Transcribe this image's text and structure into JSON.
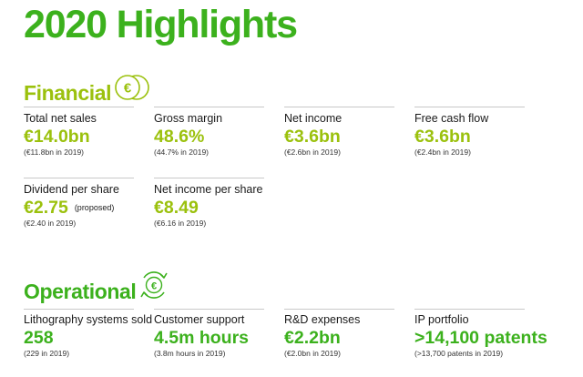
{
  "title": "2020 Highlights",
  "colors": {
    "financial": "#9bc10d",
    "operational": "#3cb11d",
    "title": "#3cb11d",
    "divider": "#c8c8c8"
  },
  "financial": {
    "heading": "Financial",
    "icon": "euro-coins-icon",
    "metrics": [
      {
        "label": "Total net sales",
        "value": "€14.0bn",
        "previous": "(€11.8bn in 2019)"
      },
      {
        "label": "Gross margin",
        "value": "48.6%",
        "previous": "(44.7% in 2019)"
      },
      {
        "label": "Net income",
        "value": "€3.6bn",
        "previous": "(€2.6bn in 2019)"
      },
      {
        "label": "Free cash flow",
        "value": "€3.6bn",
        "previous": "(€2.4bn in 2019)"
      },
      {
        "label": "Dividend per share",
        "value": "€2.75",
        "note": "(proposed)",
        "previous": "(€2.40 in 2019)"
      },
      {
        "label": "Net income per share",
        "value": "€8.49",
        "previous": "(€6.16 in 2019)"
      }
    ]
  },
  "operational": {
    "heading": "Operational",
    "icon": "cycle-euro-icon",
    "metrics": [
      {
        "label": "Lithography systems sold",
        "value": "258",
        "previous": "(229 in 2019)"
      },
      {
        "label": "Customer support",
        "value": "4.5m hours",
        "previous": "(3.8m hours in 2019)"
      },
      {
        "label": "R&D expenses",
        "value": "€2.2bn",
        "previous": "(€2.0bn in 2019)"
      },
      {
        "label": "IP portfolio",
        "value": ">14,100 patents",
        "previous": "(>13,700 patents in 2019)"
      }
    ]
  }
}
